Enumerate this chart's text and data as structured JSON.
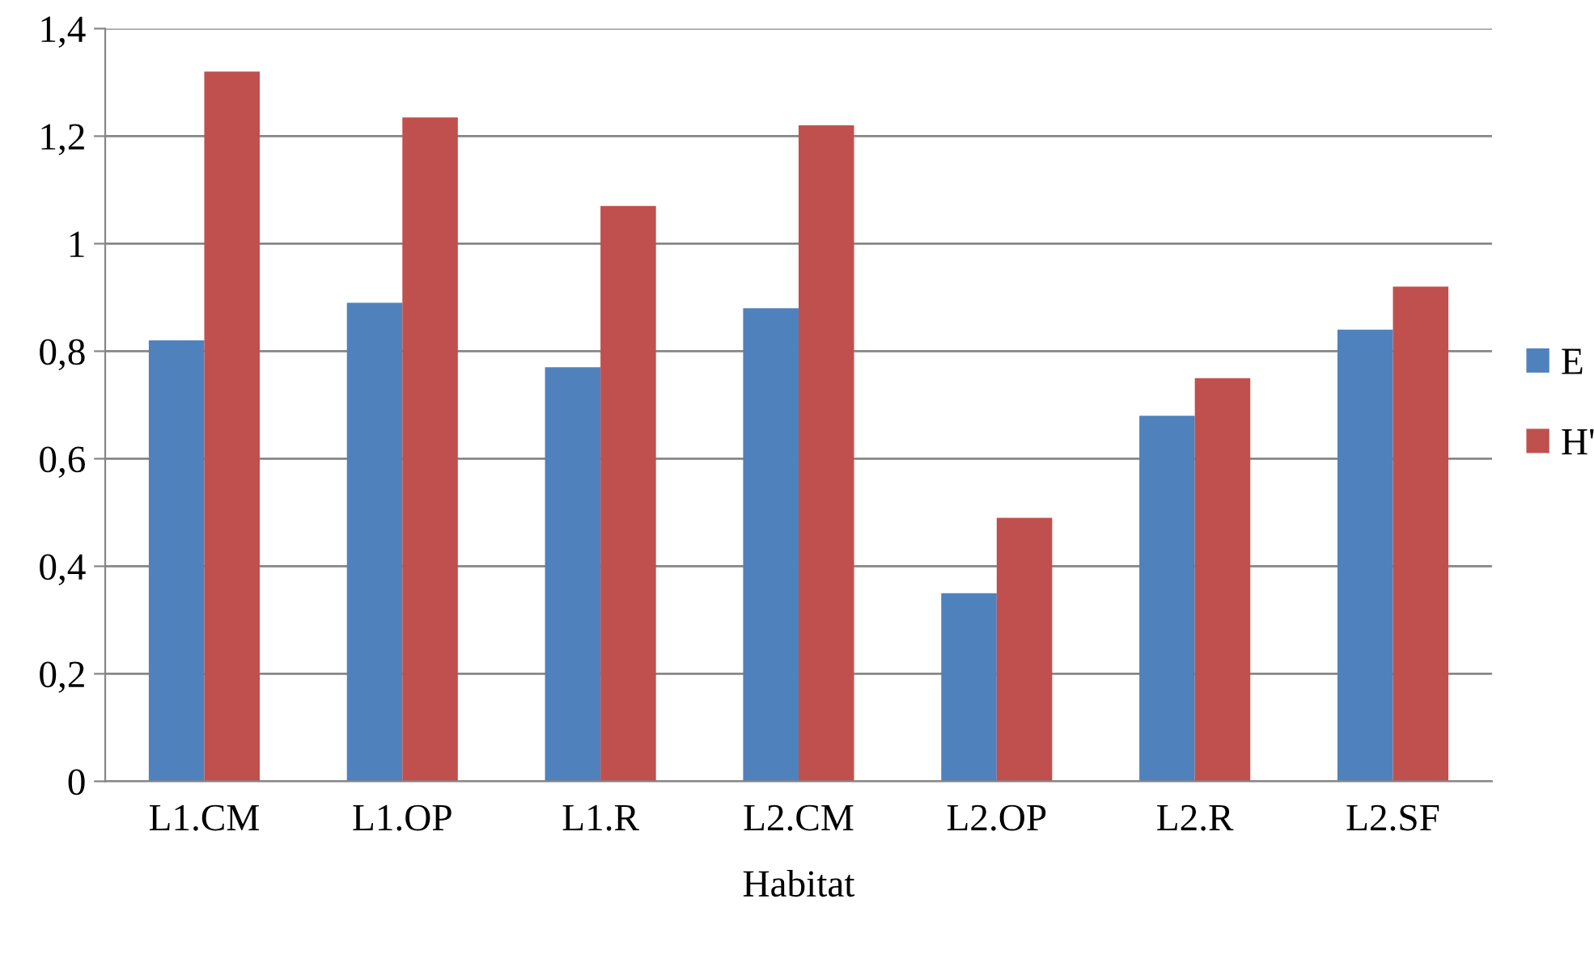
{
  "chart_data": {
    "type": "bar",
    "xlabel": "Habitat",
    "categories": [
      "L1.CM",
      "L1.OP",
      "L1.R",
      "L2.CM",
      "L2.OP",
      "L2.R",
      "L2.SF"
    ],
    "series": [
      {
        "name": "E",
        "color": "#4f81bd",
        "values": [
          0.82,
          0.89,
          0.77,
          0.88,
          0.35,
          0.68,
          0.84
        ]
      },
      {
        "name": "H'",
        "color": "#c0504d",
        "values": [
          1.32,
          1.235,
          1.07,
          1.22,
          0.49,
          0.75,
          0.92
        ]
      }
    ],
    "ylim": [
      0,
      1.4
    ],
    "yticks": [
      0,
      {
        "value": 0.2,
        "label": "0,2"
      },
      {
        "value": 0.4,
        "label": "0,4"
      },
      {
        "value": 0.6,
        "label": "0,6"
      },
      {
        "value": 0.8,
        "label": "0,8"
      },
      1,
      {
        "value": 1.2,
        "label": "1,2"
      },
      {
        "value": 1.4,
        "label": "1,4"
      }
    ],
    "grid": "y",
    "legend": "right"
  }
}
